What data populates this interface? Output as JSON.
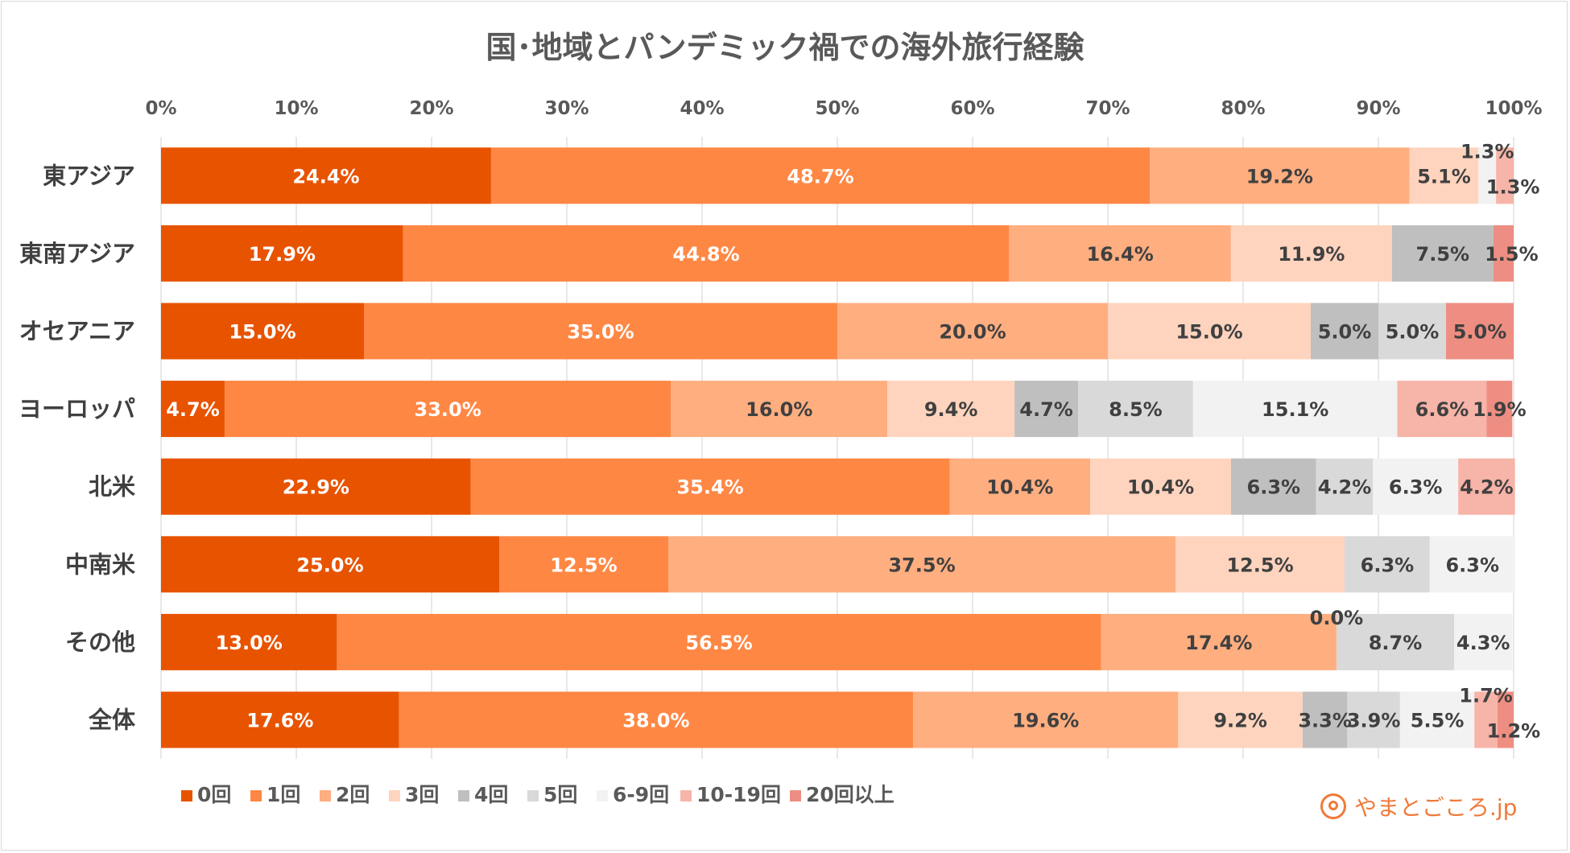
{
  "chart_data": {
    "type": "stacked-bar-horizontal",
    "title": "国･地域とパンデミック禍での海外旅行経験",
    "xlim": [
      0,
      100
    ],
    "x_ticks": [
      "0%",
      "10%",
      "20%",
      "30%",
      "40%",
      "50%",
      "60%",
      "70%",
      "80%",
      "90%",
      "100%"
    ],
    "legend_position": "bottom-left",
    "series": [
      {
        "name": "0回",
        "color": "#E85300"
      },
      {
        "name": "1回",
        "color": "#FF8744"
      },
      {
        "name": "2回",
        "color": "#FFAE80"
      },
      {
        "name": "3回",
        "color": "#FFD4BE"
      },
      {
        "name": "4回",
        "color": "#BFBFBF"
      },
      {
        "name": "5回",
        "color": "#D9D9D9"
      },
      {
        "name": "6-9回",
        "color": "#F2F2F2"
      },
      {
        "name": "10-19回",
        "color": "#F7B4A8"
      },
      {
        "name": "20回以上",
        "color": "#EE8E82"
      }
    ],
    "categories": [
      {
        "name": "東アジア",
        "values": [
          24.4,
          48.7,
          19.2,
          5.1,
          0,
          0,
          1.3,
          1.3,
          0
        ],
        "labels": [
          "24.4%",
          "48.7%",
          "19.2%",
          "5.1%",
          "",
          "",
          "1.3%",
          "1.3%",
          ""
        ]
      },
      {
        "name": "東南アジア",
        "values": [
          17.9,
          44.8,
          16.4,
          11.9,
          7.5,
          0,
          0,
          0,
          1.5
        ],
        "labels": [
          "17.9%",
          "44.8%",
          "16.4%",
          "11.9%",
          "7.5%",
          "",
          "",
          "",
          "1.5%"
        ]
      },
      {
        "name": "オセアニア",
        "values": [
          15.0,
          35.0,
          20.0,
          15.0,
          5.0,
          5.0,
          0,
          0,
          5.0
        ],
        "labels": [
          "15.0%",
          "35.0%",
          "20.0%",
          "15.0%",
          "5.0%",
          "5.0%",
          "",
          "",
          "5.0%"
        ]
      },
      {
        "name": "ヨーロッパ",
        "values": [
          4.7,
          33.0,
          16.0,
          9.4,
          4.7,
          8.5,
          15.1,
          6.6,
          1.9
        ],
        "labels": [
          "4.7%",
          "33.0%",
          "16.0%",
          "9.4%",
          "4.7%",
          "8.5%",
          "15.1%",
          "6.6%",
          "1.9%"
        ]
      },
      {
        "name": "北米",
        "values": [
          22.9,
          35.4,
          10.4,
          10.4,
          6.3,
          4.2,
          6.3,
          4.2,
          0
        ],
        "labels": [
          "22.9%",
          "35.4%",
          "10.4%",
          "10.4%",
          "6.3%",
          "4.2%",
          "6.3%",
          "4.2%",
          ""
        ]
      },
      {
        "name": "中南米",
        "values": [
          25.0,
          12.5,
          37.5,
          12.5,
          0,
          6.3,
          6.3,
          0,
          0
        ],
        "labels": [
          "25.0%",
          "12.5%",
          "37.5%",
          "12.5%",
          "",
          "6.3%",
          "6.3%",
          "",
          ""
        ]
      },
      {
        "name": "その他",
        "values": [
          13.0,
          56.5,
          17.4,
          0.0,
          0,
          8.7,
          4.3,
          0,
          0
        ],
        "labels": [
          "13.0%",
          "56.5%",
          "17.4%",
          "0.0%",
          "",
          "8.7%",
          "4.3%",
          "",
          ""
        ]
      },
      {
        "name": "全体",
        "values": [
          17.6,
          38.0,
          19.6,
          9.2,
          3.3,
          3.9,
          5.5,
          1.7,
          1.2
        ],
        "labels": [
          "17.6%",
          "38.0%",
          "19.6%",
          "9.2%",
          "3.3%",
          "3.9%",
          "5.5%",
          "1.7%",
          "1.2%"
        ]
      }
    ]
  },
  "brand": {
    "text": "やまとごころ.jp"
  }
}
